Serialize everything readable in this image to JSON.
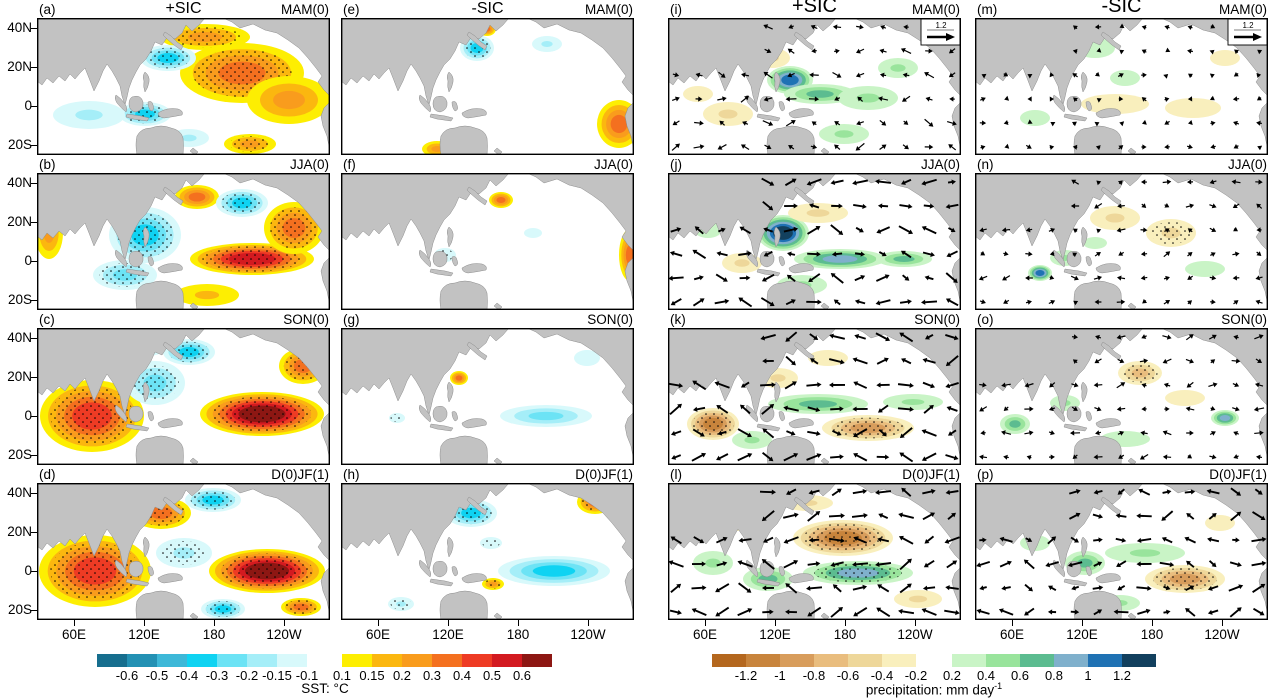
{
  "chart_data": {
    "type": "heatmap",
    "figure_kind": "multi-panel seasonal anomaly composite maps (Indo-Pacific)",
    "rows_seasons": [
      "MAM(0)",
      "JJA(0)",
      "SON(0)",
      "D(0)JF(1)"
    ],
    "x_ticks": [
      "60E",
      "120E",
      "180",
      "120W"
    ],
    "y_ticks": [
      "40N",
      "20N",
      "0",
      "20S"
    ],
    "reference_vector_label": "1.2",
    "column_groups": [
      {
        "variable": "sst",
        "titles": [
          "+SIC",
          "-SIC"
        ]
      },
      {
        "variable": "precip",
        "titles": [
          "+SIC",
          "-SIC"
        ]
      }
    ],
    "sst_colorbar": {
      "label": "SST: °C",
      "negative_labels": [
        "-0.6",
        "-0.5",
        "-0.4",
        "-0.3",
        "-0.2",
        "-0.15",
        "-0.1"
      ],
      "negative_colors": [
        "#166e8e",
        "#2391b4",
        "#3db8d8",
        "#0fd3f2",
        "#6ce3f5",
        "#a5eef8",
        "#d8f9fb"
      ],
      "positive_labels": [
        "0.1",
        "0.15",
        "0.2",
        "0.3",
        "0.4",
        "0.5",
        "0.6"
      ],
      "positive_colors": [
        "#fdee02",
        "#fbb70f",
        "#f99c1d",
        "#f4701f",
        "#ee3b24",
        "#d31a20",
        "#8d1713"
      ]
    },
    "precip_colorbar": {
      "label_prefix": "precipitation: mm day",
      "label_sup": "-1",
      "negative_labels": [
        "-1.2",
        "-1",
        "-0.8",
        "-0.6",
        "-0.4",
        "-0.2"
      ],
      "negative_colors": [
        "#b4671e",
        "#c8843c",
        "#d89d5c",
        "#e9bd7e",
        "#eed79a",
        "#f9efbd"
      ],
      "positive_labels": [
        "0.2",
        "0.4",
        "0.6",
        "0.8",
        "1",
        "1.2"
      ],
      "positive_colors": [
        "#c9f4c6",
        "#99e49c",
        "#5cbc90",
        "#7fb0cc",
        "#1f72b4",
        "#12405e"
      ]
    },
    "blob_format": "[cx, cy, rx, ry, value, stippled] in panel coords 293x137; value in colorbar units",
    "panels": [
      {
        "letter": "(a)",
        "variable": "sst",
        "sic": "+SIC",
        "season": "MAM(0)",
        "col": 0,
        "row": 0,
        "show_title": true,
        "arrows": false,
        "vector_scale": 0,
        "ref_vector": false,
        "blobs": [
          [
            205,
            55,
            62,
            30,
            0.3,
            1
          ],
          [
            168,
            19,
            45,
            13,
            0.25,
            1
          ],
          [
            252,
            82,
            42,
            24,
            0.2,
            0
          ],
          [
            131,
            40,
            28,
            13,
            -0.3,
            1
          ],
          [
            108,
            96,
            26,
            12,
            -0.3,
            1
          ],
          [
            52,
            97,
            36,
            14,
            -0.15,
            0
          ],
          [
            283,
            30,
            14,
            12,
            0.4,
            1
          ],
          [
            213,
            126,
            26,
            10,
            0.25,
            1
          ],
          [
            152,
            120,
            20,
            9,
            -0.15,
            0
          ]
        ]
      },
      {
        "letter": "(b)",
        "variable": "sst",
        "sic": "+SIC",
        "season": "JJA(0)",
        "col": 0,
        "row": 1,
        "show_title": false,
        "arrows": false,
        "vector_scale": 0,
        "ref_vector": false,
        "blobs": [
          [
            108,
            62,
            36,
            28,
            -0.3,
            1
          ],
          [
            88,
            102,
            32,
            15,
            -0.2,
            1
          ],
          [
            160,
            24,
            22,
            12,
            0.35,
            0
          ],
          [
            205,
            30,
            26,
            14,
            -0.3,
            1
          ],
          [
            215,
            86,
            62,
            16,
            0.55,
            1
          ],
          [
            257,
            55,
            30,
            26,
            0.3,
            1
          ],
          [
            12,
            60,
            14,
            26,
            0.2,
            0
          ],
          [
            170,
            122,
            32,
            11,
            0.15,
            0
          ]
        ]
      },
      {
        "letter": "(c)",
        "variable": "sst",
        "sic": "+SIC",
        "season": "SON(0)",
        "col": 0,
        "row": 2,
        "show_title": false,
        "arrows": false,
        "vector_scale": 0,
        "ref_vector": false,
        "blobs": [
          [
            55,
            88,
            52,
            36,
            0.4,
            1
          ],
          [
            118,
            55,
            30,
            22,
            -0.25,
            1
          ],
          [
            152,
            24,
            26,
            13,
            -0.3,
            1
          ],
          [
            225,
            86,
            62,
            22,
            0.6,
            1
          ],
          [
            266,
            38,
            24,
            18,
            0.3,
            1
          ],
          [
            110,
            18,
            20,
            10,
            -0.2,
            0
          ]
        ]
      },
      {
        "letter": "(d)",
        "variable": "sst",
        "sic": "+SIC",
        "season": "D(0)JF(1)",
        "col": 0,
        "row": 3,
        "show_title": false,
        "arrows": false,
        "vector_scale": 0,
        "ref_vector": false,
        "blobs": [
          [
            58,
            88,
            56,
            36,
            0.45,
            1
          ],
          [
            124,
            30,
            30,
            16,
            0.35,
            1
          ],
          [
            176,
            17,
            28,
            12,
            -0.35,
            1
          ],
          [
            147,
            70,
            28,
            15,
            -0.15,
            1
          ],
          [
            230,
            88,
            58,
            22,
            0.65,
            1
          ],
          [
            284,
            28,
            14,
            18,
            0.4,
            1
          ],
          [
            186,
            126,
            22,
            10,
            -0.3,
            1
          ],
          [
            264,
            124,
            20,
            9,
            0.3,
            1
          ]
        ]
      },
      {
        "letter": "(e)",
        "variable": "sst",
        "sic": "-SIC",
        "season": "MAM(0)",
        "col": 1,
        "row": 0,
        "show_title": true,
        "arrows": false,
        "vector_scale": 0,
        "ref_vector": false,
        "blobs": [
          [
            136,
            30,
            17,
            13,
            -0.3,
            1
          ],
          [
            206,
            26,
            15,
            8,
            -0.15,
            0
          ],
          [
            284,
            28,
            11,
            20,
            0.3,
            0
          ],
          [
            278,
            106,
            22,
            24,
            0.3,
            0
          ],
          [
            96,
            131,
            15,
            8,
            0.2,
            0
          ],
          [
            146,
            11,
            9,
            7,
            0.3,
            0
          ]
        ]
      },
      {
        "letter": "(f)",
        "variable": "sst",
        "sic": "-SIC",
        "season": "JJA(0)",
        "col": 1,
        "row": 1,
        "show_title": false,
        "arrows": false,
        "vector_scale": 0,
        "ref_vector": false,
        "blobs": [
          [
            160,
            27,
            12,
            8,
            0.35,
            0
          ],
          [
            4,
            32,
            9,
            16,
            0.2,
            0
          ],
          [
            289,
            82,
            11,
            26,
            0.3,
            0
          ],
          [
            104,
            82,
            11,
            7,
            -0.12,
            1
          ],
          [
            192,
            60,
            9,
            5,
            -0.12,
            0
          ]
        ]
      },
      {
        "letter": "(g)",
        "variable": "sst",
        "sic": "-SIC",
        "season": "SON(0)",
        "col": 1,
        "row": 2,
        "show_title": false,
        "arrows": false,
        "vector_scale": 0,
        "ref_vector": false,
        "blobs": [
          [
            96,
            12,
            19,
            8,
            0.25,
            0
          ],
          [
            118,
            50,
            9,
            7,
            0.35,
            0
          ],
          [
            205,
            88,
            46,
            11,
            -0.2,
            0
          ],
          [
            246,
            30,
            13,
            8,
            -0.12,
            0
          ],
          [
            56,
            90,
            8,
            5,
            -0.12,
            1
          ]
        ]
      },
      {
        "letter": "(h)",
        "variable": "sst",
        "sic": "-SIC",
        "season": "D(0)JF(1)",
        "col": 1,
        "row": 3,
        "show_title": false,
        "arrows": false,
        "vector_scale": 0,
        "ref_vector": false,
        "blobs": [
          [
            130,
            30,
            26,
            14,
            -0.3,
            1
          ],
          [
            213,
            88,
            56,
            15,
            -0.3,
            0
          ],
          [
            254,
            19,
            18,
            12,
            0.35,
            1
          ],
          [
            152,
            101,
            11,
            6,
            0.2,
            1
          ],
          [
            60,
            121,
            13,
            7,
            -0.15,
            1
          ],
          [
            150,
            60,
            11,
            6,
            -0.12,
            1
          ]
        ]
      },
      {
        "letter": "(i)",
        "variable": "precip",
        "sic": "+SIC",
        "season": "MAM(0)",
        "col": 2,
        "row": 0,
        "show_title": true,
        "arrows": true,
        "vector_scale": 0.9,
        "ref_vector": true,
        "blobs": [
          [
            122,
            62,
            23,
            14,
            1.0,
            0
          ],
          [
            152,
            76,
            36,
            10,
            0.6,
            0
          ],
          [
            200,
            80,
            30,
            12,
            0.5,
            0
          ],
          [
            104,
            40,
            18,
            10,
            -0.5,
            0
          ],
          [
            60,
            96,
            25,
            12,
            -0.4,
            0
          ],
          [
            230,
            50,
            20,
            10,
            0.4,
            0
          ],
          [
            176,
            116,
            25,
            10,
            0.4,
            0
          ],
          [
            30,
            76,
            15,
            8,
            -0.3,
            0
          ]
        ]
      },
      {
        "letter": "(j)",
        "variable": "precip",
        "sic": "+SIC",
        "season": "JJA(0)",
        "col": 2,
        "row": 1,
        "show_title": false,
        "arrows": true,
        "vector_scale": 1.3,
        "ref_vector": false,
        "blobs": [
          [
            115,
            60,
            26,
            18,
            1.2,
            0
          ],
          [
            172,
            86,
            46,
            10,
            0.8,
            0
          ],
          [
            236,
            86,
            28,
            8,
            0.6,
            0
          ],
          [
            150,
            40,
            30,
            10,
            -0.5,
            0
          ],
          [
            74,
            90,
            20,
            10,
            -0.4,
            0
          ],
          [
            134,
            112,
            25,
            10,
            0.5,
            0
          ],
          [
            40,
            55,
            15,
            10,
            0.3,
            0
          ]
        ]
      },
      {
        "letter": "(k)",
        "variable": "precip",
        "sic": "+SIC",
        "season": "SON(0)",
        "col": 2,
        "row": 2,
        "show_title": false,
        "arrows": true,
        "vector_scale": 1.5,
        "ref_vector": false,
        "blobs": [
          [
            45,
            96,
            26,
            16,
            -1.1,
            1
          ],
          [
            200,
            100,
            46,
            13,
            -0.9,
            1
          ],
          [
            150,
            76,
            50,
            10,
            0.6,
            0
          ],
          [
            245,
            74,
            30,
            8,
            0.5,
            0
          ],
          [
            110,
            50,
            20,
            10,
            -0.4,
            0
          ],
          [
            84,
            112,
            20,
            9,
            0.5,
            0
          ],
          [
            160,
            30,
            20,
            8,
            -0.3,
            0
          ]
        ]
      },
      {
        "letter": "(l)",
        "variable": "precip",
        "sic": "+SIC",
        "season": "D(0)JF(1)",
        "col": 2,
        "row": 3,
        "show_title": false,
        "arrows": true,
        "vector_scale": 1.6,
        "ref_vector": false,
        "blobs": [
          [
            175,
            55,
            50,
            18,
            -1.1,
            1
          ],
          [
            190,
            90,
            55,
            12,
            0.9,
            1
          ],
          [
            100,
            96,
            25,
            12,
            0.6,
            0
          ],
          [
            45,
            80,
            20,
            12,
            0.4,
            0
          ],
          [
            70,
            40,
            18,
            8,
            -0.4,
            0
          ],
          [
            250,
            116,
            24,
            9,
            -0.5,
            0
          ],
          [
            140,
            20,
            25,
            8,
            -0.4,
            0
          ]
        ]
      },
      {
        "letter": "(m)",
        "variable": "precip",
        "sic": "-SIC",
        "season": "MAM(0)",
        "col": 3,
        "row": 0,
        "show_title": true,
        "arrows": true,
        "vector_scale": 0.5,
        "ref_vector": true,
        "blobs": [
          [
            120,
            30,
            20,
            10,
            0.3,
            0
          ],
          [
            150,
            60,
            15,
            8,
            0.3,
            0
          ],
          [
            140,
            86,
            34,
            10,
            -0.3,
            0
          ],
          [
            218,
            90,
            28,
            10,
            -0.3,
            0
          ],
          [
            60,
            100,
            15,
            8,
            0.3,
            0
          ],
          [
            250,
            40,
            15,
            8,
            -0.2,
            0
          ]
        ]
      },
      {
        "letter": "(n)",
        "variable": "precip",
        "sic": "-SIC",
        "season": "JJA(0)",
        "col": 3,
        "row": 1,
        "show_title": false,
        "arrows": true,
        "vector_scale": 0.7,
        "ref_vector": false,
        "blobs": [
          [
            140,
            45,
            25,
            12,
            -0.5,
            0
          ],
          [
            196,
            60,
            25,
            14,
            -0.5,
            1
          ],
          [
            90,
            85,
            15,
            8,
            0.4,
            0
          ],
          [
            65,
            100,
            12,
            8,
            1.0,
            0
          ],
          [
            230,
            96,
            20,
            8,
            0.3,
            0
          ],
          [
            120,
            70,
            12,
            6,
            0.3,
            0
          ]
        ]
      },
      {
        "letter": "(o)",
        "variable": "precip",
        "sic": "-SIC",
        "season": "SON(0)",
        "col": 3,
        "row": 2,
        "show_title": false,
        "arrows": true,
        "vector_scale": 0.8,
        "ref_vector": false,
        "blobs": [
          [
            165,
            45,
            22,
            12,
            -0.6,
            1
          ],
          [
            90,
            75,
            15,
            8,
            0.5,
            0
          ],
          [
            250,
            90,
            14,
            8,
            0.8,
            0
          ],
          [
            150,
            111,
            25,
            8,
            0.3,
            0
          ],
          [
            40,
            96,
            15,
            10,
            0.7,
            0
          ],
          [
            210,
            70,
            20,
            8,
            -0.3,
            0
          ]
        ]
      },
      {
        "letter": "(p)",
        "variable": "precip",
        "sic": "-SIC",
        "season": "D(0)JF(1)",
        "col": 3,
        "row": 3,
        "show_title": false,
        "arrows": true,
        "vector_scale": 1.2,
        "ref_vector": false,
        "blobs": [
          [
            210,
            96,
            40,
            14,
            -0.9,
            1
          ],
          [
            170,
            70,
            40,
            10,
            0.5,
            0
          ],
          [
            110,
            80,
            20,
            12,
            0.6,
            0
          ],
          [
            60,
            60,
            15,
            8,
            0.3,
            0
          ],
          [
            145,
            120,
            20,
            8,
            0.4,
            0
          ],
          [
            245,
            40,
            15,
            8,
            -0.3,
            0
          ]
        ]
      }
    ]
  },
  "colors": {
    "land": "#c2c2c2",
    "coast": "#8d8d8d",
    "ocean": "#ffffff",
    "frame": "#000000",
    "arrow": "#000000"
  }
}
